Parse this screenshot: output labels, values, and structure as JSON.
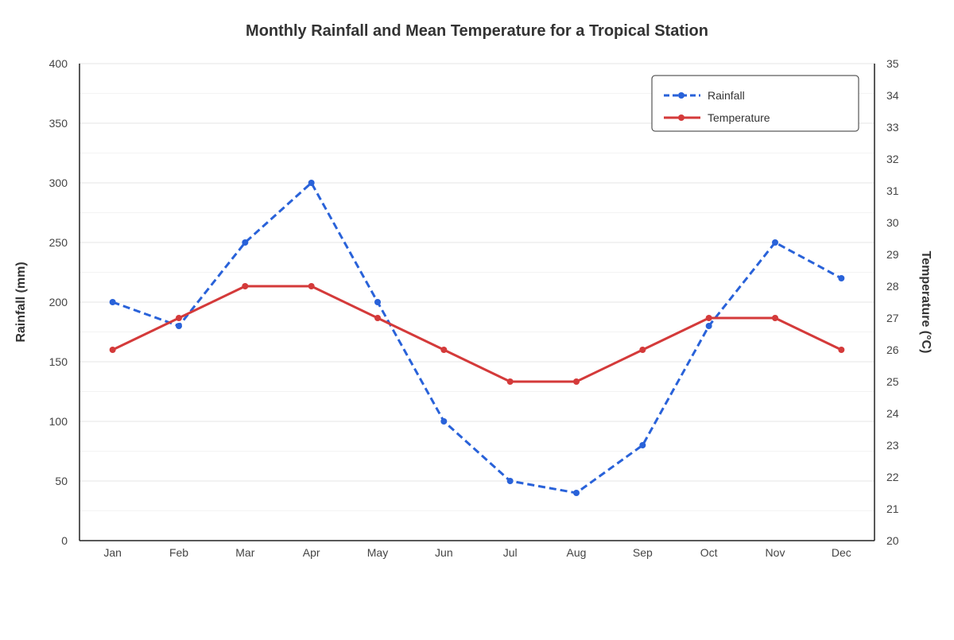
{
  "chart_data": {
    "type": "line",
    "title": "Monthly Rainfall and Mean Temperature for a Tropical Station",
    "categories": [
      "Jan",
      "Feb",
      "Mar",
      "Apr",
      "May",
      "Jun",
      "Jul",
      "Aug",
      "Sep",
      "Oct",
      "Nov",
      "Dec"
    ],
    "series": [
      {
        "name": "Rainfall",
        "axis": "left",
        "color": "#2962d9",
        "line_style": "dashed",
        "values": [
          200,
          180,
          250,
          300,
          200,
          100,
          50,
          40,
          80,
          180,
          250,
          220
        ]
      },
      {
        "name": "Temperature",
        "axis": "right",
        "color": "#d43a3a",
        "line_style": "solid",
        "values": [
          26,
          27,
          28,
          28,
          27,
          26,
          25,
          25,
          26,
          27,
          27,
          26
        ]
      }
    ],
    "ylabel": "Rainfall (mm)",
    "ylim": [
      0,
      400
    ],
    "yticks": [
      0,
      50,
      100,
      150,
      200,
      250,
      300,
      350,
      400
    ],
    "y2label": "Temperature (°C)",
    "y2lim": [
      20,
      35
    ],
    "y2ticks": [
      20,
      21,
      22,
      23,
      24,
      25,
      26,
      27,
      28,
      29,
      30,
      31,
      32,
      33,
      34,
      35
    ],
    "grid": true,
    "legend_position": "top-right"
  }
}
